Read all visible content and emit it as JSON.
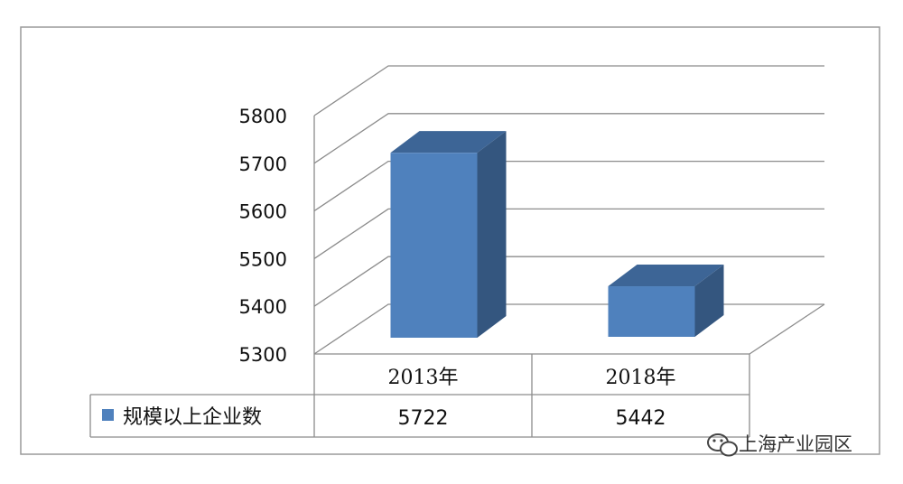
{
  "chart_data": {
    "type": "bar",
    "categories": [
      "2013年",
      "2018年"
    ],
    "series": [
      {
        "name": "规模以上企业数",
        "values": [
          5722,
          5442
        ]
      }
    ],
    "ylim": [
      5300,
      5800
    ],
    "yticks": [
      "5800",
      "5700",
      "5600",
      "5500",
      "5400",
      "5300"
    ],
    "grid": true,
    "legend": "data-table-left",
    "colors": {
      "bar_front": "#4f81bd",
      "bar_side": "#34567f",
      "bar_top": "#3d6596",
      "gridline": "#8c8c8c"
    }
  },
  "watermark": {
    "text": "上海产业园区",
    "icon": "wechat-icon"
  }
}
